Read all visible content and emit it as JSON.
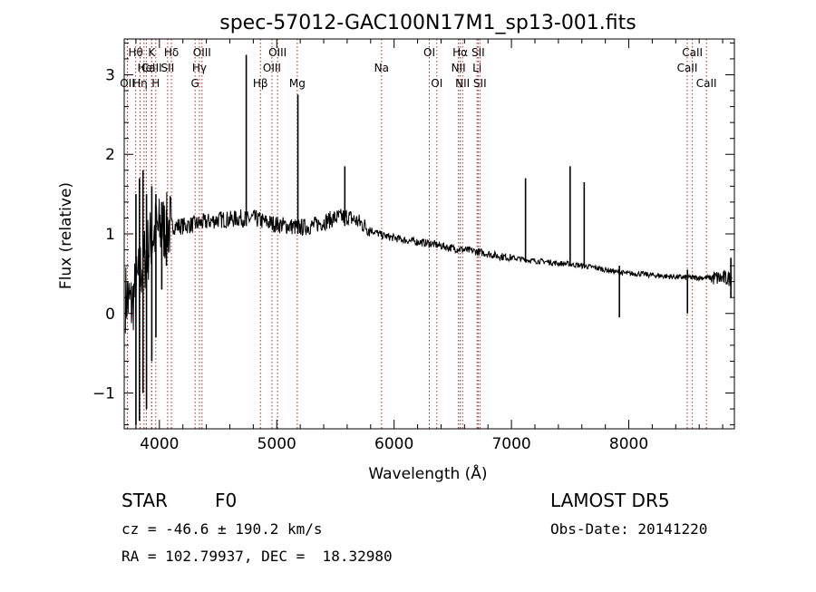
{
  "chart_data": {
    "type": "line",
    "title": "spec-57012-GAC100N17M1_sp13-001.fits",
    "xlabel": "Wavelength (Å)",
    "ylabel": "Flux (relative)",
    "xlim": [
      3700,
      8900
    ],
    "ylim": [
      -1.45,
      3.45
    ],
    "xticks": [
      4000,
      5000,
      6000,
      7000,
      8000
    ],
    "yticks": [
      -1,
      0,
      1,
      2,
      3
    ],
    "grid": false,
    "colors": {
      "spectrum": "#000000",
      "lines": "#b22222"
    },
    "spectrum": {
      "name": "",
      "x": [
        3720,
        3760,
        3800,
        3850,
        3900,
        3950,
        4000,
        4100,
        4200,
        4300,
        4400,
        4500,
        4600,
        4700,
        4750,
        4800,
        4900,
        5000,
        5100,
        5200,
        5300,
        5400,
        5500,
        5600,
        5700,
        5800,
        5900,
        6000,
        6100,
        6200,
        6300,
        6400,
        6500,
        6600,
        6700,
        6800,
        6900,
        7000,
        7100,
        7200,
        7300,
        7400,
        7500,
        7600,
        7700,
        7800,
        7900,
        8000,
        8100,
        8200,
        8300,
        8400,
        8500,
        8600,
        8700,
        8800,
        8880
      ],
      "y": [
        0.2,
        0.1,
        0.3,
        0.6,
        0.8,
        1.0,
        1.05,
        1.1,
        1.1,
        1.12,
        1.15,
        1.18,
        1.18,
        1.2,
        1.18,
        1.2,
        1.15,
        1.12,
        1.1,
        1.08,
        1.1,
        1.15,
        1.2,
        1.22,
        1.15,
        1.05,
        0.98,
        0.95,
        0.92,
        0.9,
        0.88,
        0.85,
        0.82,
        0.8,
        0.78,
        0.75,
        0.72,
        0.7,
        0.68,
        0.66,
        0.65,
        0.63,
        0.62,
        0.6,
        0.58,
        0.55,
        0.52,
        0.5,
        0.5,
        0.48,
        0.47,
        0.46,
        0.45,
        0.45,
        0.45,
        0.44,
        0.44
      ],
      "spikes": [
        {
          "x": 3800,
          "low": -1.4,
          "high": 1.5
        },
        {
          "x": 3830,
          "low": -1.35,
          "high": 1.7
        },
        {
          "x": 3860,
          "low": -1.0,
          "high": 1.8
        },
        {
          "x": 3890,
          "low": -1.2,
          "high": 1.5
        },
        {
          "x": 3935,
          "low": -0.6,
          "high": 1.6
        },
        {
          "x": 3970,
          "low": -0.3,
          "high": 1.5
        },
        {
          "x": 4020,
          "low": 0.3,
          "high": 1.4
        },
        {
          "x": 4060,
          "low": 0.6,
          "high": 1.3
        },
        {
          "x": 4740,
          "low": 1.1,
          "high": 3.25
        },
        {
          "x": 5180,
          "low": 1.0,
          "high": 2.75
        },
        {
          "x": 5580,
          "low": 1.1,
          "high": 1.85
        },
        {
          "x": 7120,
          "low": 0.65,
          "high": 1.7
        },
        {
          "x": 7500,
          "low": 0.6,
          "high": 1.85
        },
        {
          "x": 7620,
          "low": 0.6,
          "high": 1.65
        },
        {
          "x": 7920,
          "low": -0.05,
          "high": 0.6
        },
        {
          "x": 8500,
          "low": 0.0,
          "high": 0.55
        },
        {
          "x": 8870,
          "low": 0.2,
          "high": 0.7
        }
      ]
    },
    "lines": [
      {
        "x": 3727,
        "label": "OII",
        "row": 2
      },
      {
        "x": 3798,
        "label": "Hθ",
        "row": 0
      },
      {
        "x": 3835,
        "label": "Hη",
        "row": 2
      },
      {
        "x": 3869,
        "label": "",
        "row": -1
      },
      {
        "x": 3889,
        "label": "HeI",
        "row": 1
      },
      {
        "x": 3934,
        "label": "K",
        "row": 0
      },
      {
        "x": 3934,
        "label": "CaII",
        "row": 1
      },
      {
        "x": 3969,
        "label": "H",
        "row": 2
      },
      {
        "x": 4070,
        "label": "SII",
        "row": 1
      },
      {
        "x": 4102,
        "label": "Hδ",
        "row": 0
      },
      {
        "x": 4304,
        "label": "G",
        "row": 2
      },
      {
        "x": 4341,
        "label": "Hγ",
        "row": 1
      },
      {
        "x": 4363,
        "label": "OIII",
        "row": 0
      },
      {
        "x": 4861,
        "label": "Hβ",
        "row": 2
      },
      {
        "x": 4959,
        "label": "OIII",
        "row": 1
      },
      {
        "x": 5007,
        "label": "OIII",
        "row": 0
      },
      {
        "x": 5175,
        "label": "Mg",
        "row": 2
      },
      {
        "x": 5893,
        "label": "Na",
        "row": 1
      },
      {
        "x": 6300,
        "label": "OI",
        "row": 0
      },
      {
        "x": 6364,
        "label": "OI",
        "row": 2
      },
      {
        "x": 6548,
        "label": "NII",
        "row": 1
      },
      {
        "x": 6563,
        "label": "Hα",
        "row": 0
      },
      {
        "x": 6583,
        "label": "NII",
        "row": 2
      },
      {
        "x": 6707,
        "label": "Li",
        "row": 1
      },
      {
        "x": 6716,
        "label": "SII",
        "row": 0
      },
      {
        "x": 6731,
        "label": "SII",
        "row": 2
      },
      {
        "x": 8498,
        "label": "CaII",
        "row": 1
      },
      {
        "x": 8542,
        "label": "CaII",
        "row": 0
      },
      {
        "x": 8662,
        "label": "CaII",
        "row": 2
      }
    ]
  },
  "info": {
    "class": "STAR",
    "subclass": "F0",
    "survey": "LAMOST DR5",
    "cz": "cz = -46.6 ± 190.2 km/s",
    "obs_date": "Obs-Date: 20141220",
    "coords": "RA = 102.79937, DEC =  18.32980"
  }
}
